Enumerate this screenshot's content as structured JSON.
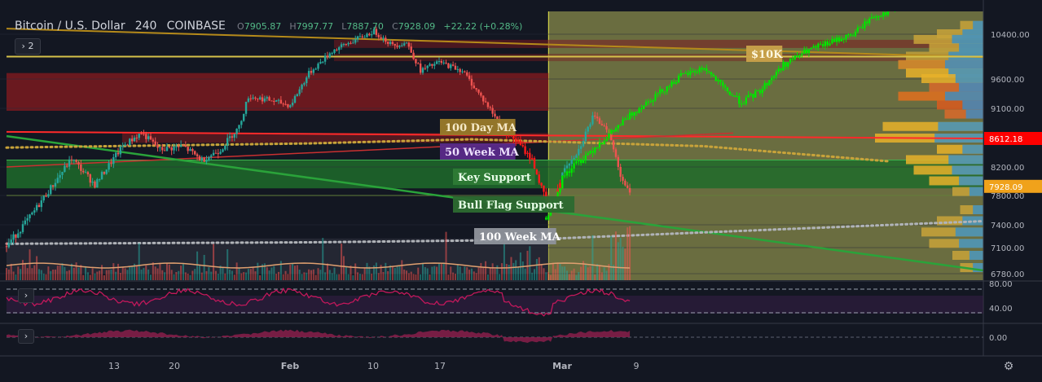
{
  "header": {
    "symbol": "Bitcoin / U.S. Dollar",
    "interval": "240",
    "exchange": "COINBASE",
    "open_label": "O",
    "open": "7905.87",
    "high_label": "H",
    "high": "7997.77",
    "low_label": "L",
    "low": "7887.70",
    "close_label": "C",
    "close": "7928.09",
    "change": "+22.22 (+0.28%)",
    "collapse_count": "2"
  },
  "colors": {
    "background": "#131722",
    "up": "#26a69a",
    "down": "#ef5350",
    "bright_up": "#00e600",
    "bright_down": "#ff1a1a",
    "forecast_zone": "#7a7d45",
    "key_support_zone": "#1f6b2a",
    "resistance_zone": "#7a1a1f",
    "ma50": "#7b2fd6",
    "ma100day": "#c8a33a",
    "ma100week": "#b0b3b8",
    "rsi_line": "#c2185b",
    "price_marker": "#ff0000",
    "close_marker": "#f0a21b"
  },
  "annotations": {
    "ten_k": "$10K",
    "ma100day": "100 Day MA",
    "ma50week": "50 Week MA",
    "key_support": "Key Support",
    "bull_flag": "Bull Flag Support",
    "ma100week": "100 Week MA"
  },
  "chart_data": {
    "type": "candlestick",
    "title": "Bitcoin / U.S. Dollar",
    "price_axis_ticks": [
      "10400.00",
      "9600.00",
      "9100.00",
      "8200.00",
      "7800.00",
      "7400.00",
      "7100.00",
      "6780.00"
    ],
    "price_axis_values": [
      10400,
      9600,
      9100,
      8200,
      7800,
      7400,
      7100,
      6780
    ],
    "time_axis_ticks": [
      "13",
      "20",
      "Feb",
      "10",
      "17",
      "Mar",
      "9"
    ],
    "current_price_marker": "7928.09",
    "level_marker": "8612.18",
    "indicator_ticks": {
      "rsi": [
        "80.00",
        "40.00"
      ],
      "momentum": [
        "0.00"
      ]
    },
    "ylim": [
      6650,
      10900
    ],
    "historical_path": [
      [
        0,
        7120
      ],
      [
        10,
        7500
      ],
      [
        20,
        7950
      ],
      [
        28,
        8320
      ],
      [
        38,
        7950
      ],
      [
        50,
        8500
      ],
      [
        58,
        8700
      ],
      [
        66,
        8450
      ],
      [
        76,
        8500
      ],
      [
        84,
        8300
      ],
      [
        92,
        8450
      ],
      [
        100,
        8800
      ],
      [
        104,
        9300
      ],
      [
        112,
        9250
      ],
      [
        122,
        9150
      ],
      [
        130,
        9700
      ],
      [
        140,
        10100
      ],
      [
        150,
        10300
      ],
      [
        158,
        10450
      ],
      [
        166,
        10200
      ],
      [
        172,
        10250
      ],
      [
        178,
        9750
      ],
      [
        186,
        9900
      ],
      [
        196,
        9750
      ],
      [
        204,
        9300
      ],
      [
        214,
        8750
      ],
      [
        220,
        8550
      ],
      [
        226,
        8300
      ],
      [
        230,
        7900
      ],
      [
        234,
        7550
      ],
      [
        240,
        8200
      ],
      [
        246,
        8450
      ],
      [
        252,
        8950
      ],
      [
        258,
        8800
      ],
      [
        264,
        8100
      ],
      [
        268,
        7800
      ]
    ],
    "projected_path": [
      [
        232,
        7500
      ],
      [
        240,
        8100
      ],
      [
        250,
        8400
      ],
      [
        260,
        8700
      ],
      [
        270,
        9050
      ],
      [
        280,
        9350
      ],
      [
        290,
        9650
      ],
      [
        300,
        9800
      ],
      [
        308,
        9450
      ],
      [
        316,
        9200
      ],
      [
        324,
        9400
      ],
      [
        334,
        9850
      ],
      [
        344,
        10100
      ],
      [
        354,
        10250
      ],
      [
        364,
        10400
      ],
      [
        372,
        10700
      ],
      [
        382,
        10850
      ]
    ],
    "ma100day": [
      [
        0,
        8480
      ],
      [
        130,
        8540
      ],
      [
        200,
        8600
      ],
      [
        300,
        8500
      ],
      [
        380,
        8280
      ]
    ],
    "ma50week": [
      [
        0,
        7700
      ],
      [
        100,
        8050
      ],
      [
        200,
        8400
      ],
      [
        300,
        8800
      ],
      [
        420,
        9100
      ]
    ],
    "ma100week": [
      [
        0,
        7150
      ],
      [
        130,
        7170
      ],
      [
        220,
        7200
      ],
      [
        300,
        7300
      ],
      [
        420,
        7450
      ]
    ],
    "key_support_zone": [
      7900,
      8300
    ],
    "resistance_zone": [
      9100,
      9750
    ],
    "ten_k_level": 10000,
    "grid": true,
    "legend": "none"
  }
}
